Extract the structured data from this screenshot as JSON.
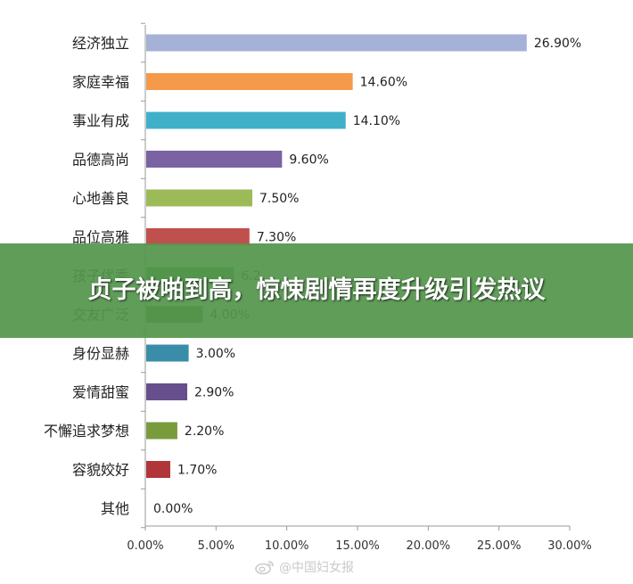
{
  "banner": {
    "headline": "贞子被啪到高，惊悚剧情再度升级引发热议"
  },
  "watermark": {
    "text": "@中国妇女报"
  },
  "chart_data": {
    "type": "bar",
    "orientation": "horizontal",
    "categories": [
      "经济独立",
      "家庭幸福",
      "事业有成",
      "品德高尚",
      "心地善良",
      "品位高雅",
      "孩子优秀",
      "交友广泛",
      "身份显赫",
      "爱情甜蜜",
      "不懈追求梦想",
      "容貌姣好",
      "其他"
    ],
    "values": [
      26.9,
      14.6,
      14.1,
      9.6,
      7.5,
      7.3,
      6.2,
      4.0,
      3.0,
      2.9,
      2.2,
      1.7,
      0.0
    ],
    "data_labels": [
      "26.90%",
      "14.60%",
      "14.10%",
      "9.60%",
      "7.50%",
      "7.30%",
      "6.2",
      "4.00%",
      "3.00%",
      "2.90%",
      "2.20%",
      "1.70%",
      "0.00%"
    ],
    "colors": [
      "#a5b1d6",
      "#f59a4a",
      "#3fb0c8",
      "#7a62a3",
      "#9cbb58",
      "#c0504d",
      "#3f9a3f",
      "#4a7a2a",
      "#3a8da8",
      "#664f8c",
      "#7a9b3c",
      "#b0363a",
      "#888888"
    ],
    "xlim": [
      0,
      30
    ],
    "xticks": [
      "0.00%",
      "5.00%",
      "10.00%",
      "15.00%",
      "20.00%",
      "25.00%",
      "30.00%"
    ],
    "title": "",
    "xlabel": "",
    "ylabel": "",
    "grid": false,
    "legend": "none"
  }
}
